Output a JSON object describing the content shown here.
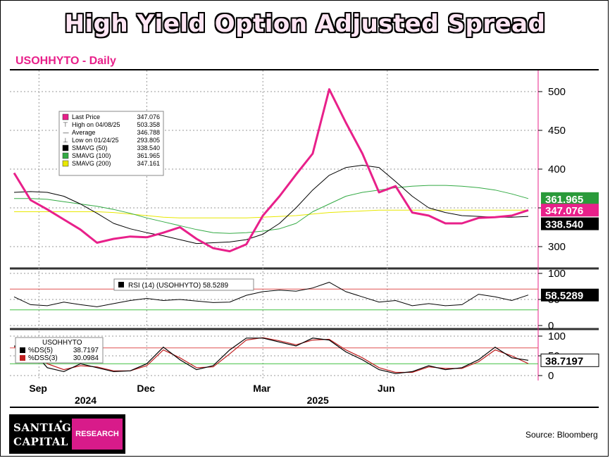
{
  "title": "High Yield Option Adjusted Spread",
  "subtitle": "USOHHYTO - Daily",
  "logo": {
    "line1": "SANTIAGO",
    "line2": "CAPITAL",
    "badge": "RESEARCH"
  },
  "source": "Source: Bloomberg",
  "colors": {
    "price": "#e8208a",
    "sma50": "#000000",
    "sma100": "#33aa44",
    "sma200": "#e8e800",
    "rsi_upper": "#e05050",
    "rsi_lower": "#40c040"
  },
  "x_axis": {
    "ticks": [
      "Sep",
      "Dec",
      "Mar",
      "Jun"
    ],
    "years": [
      "2024",
      "2025"
    ]
  },
  "legend": [
    {
      "icon": "price-swatch",
      "label": "Last Price",
      "value": "347.076"
    },
    {
      "icon": "high-marker",
      "label": "High on 04/08/25",
      "value": "503.358"
    },
    {
      "icon": "average-marker",
      "label": "Average",
      "value": "346.788"
    },
    {
      "icon": "low-marker",
      "label": "Low on 01/24/25",
      "value": "293.805"
    },
    {
      "icon": "sma50-swatch",
      "label": "SMAVG (50)",
      "value": "338.540"
    },
    {
      "icon": "sma100-swatch",
      "label": "SMAVG (100)",
      "value": "361.965"
    },
    {
      "icon": "sma200-swatch",
      "label": "SMAVG (200)",
      "value": "347.161"
    }
  ],
  "rsi_legend": {
    "label": "RSI (14) (USOHHYTO)",
    "value": "58.5289"
  },
  "stoch_legend": {
    "title": "USOHHYTO",
    "lines": [
      {
        "label": "%DS(5)",
        "value": "38.7197"
      },
      {
        "label": "%DSS(3)",
        "value": "30.0984"
      }
    ]
  },
  "chart_data": [
    {
      "type": "line",
      "title": "USOHHYTO - Daily",
      "ylim": [
        280,
        520
      ],
      "yticks": [
        300,
        350,
        400,
        450,
        500
      ],
      "grid": true,
      "legend_position": "top-left",
      "value_labels": [
        "361.965",
        "347.076",
        "338.540"
      ],
      "series": [
        {
          "name": "Last Price",
          "x": [
            "2024-08-01",
            "2024-08-15",
            "2024-08-29",
            "2024-09-12",
            "2024-09-26",
            "2024-10-10",
            "2024-10-24",
            "2024-11-07",
            "2024-11-21",
            "2024-12-05",
            "2024-12-19",
            "2025-01-02",
            "2025-01-16",
            "2025-01-24",
            "2025-02-06",
            "2025-02-20",
            "2025-03-06",
            "2025-03-20",
            "2025-04-03",
            "2025-04-08",
            "2025-04-17",
            "2025-05-01",
            "2025-05-15",
            "2025-05-29",
            "2025-06-12",
            "2025-06-26",
            "2025-07-10",
            "2025-07-24",
            "2025-08-07",
            "2025-08-21",
            "2025-09-04",
            "2025-09-12"
          ],
          "values": [
            395,
            360,
            348,
            335,
            322,
            305,
            310,
            313,
            312,
            318,
            325,
            310,
            298,
            294,
            303,
            340,
            365,
            393,
            420,
            503,
            460,
            420,
            370,
            378,
            344,
            340,
            330,
            330,
            337,
            338,
            340,
            347
          ]
        },
        {
          "name": "SMAVG (50)",
          "values": [
            370,
            371,
            370,
            365,
            355,
            343,
            330,
            323,
            318,
            314,
            309,
            304,
            305,
            306,
            309,
            316,
            330,
            350,
            373,
            392,
            402,
            405,
            402,
            384,
            365,
            350,
            344,
            340,
            339,
            338,
            338,
            339
          ]
        },
        {
          "name": "SMAVG (100)",
          "values": [
            362,
            362,
            361,
            358,
            355,
            352,
            348,
            343,
            337,
            332,
            327,
            322,
            318,
            317,
            318,
            320,
            323,
            330,
            345,
            355,
            365,
            370,
            373,
            376,
            378,
            379,
            379,
            378,
            376,
            373,
            368,
            362
          ]
        },
        {
          "name": "SMAVG (200)",
          "values": [
            345,
            345,
            345,
            345,
            345,
            345,
            344,
            342,
            340,
            338,
            337,
            337,
            337,
            337,
            337,
            338,
            339,
            340,
            342,
            344,
            345,
            346,
            347,
            347,
            347,
            347,
            347,
            347,
            347,
            347,
            347,
            347
          ]
        }
      ]
    },
    {
      "type": "line",
      "title": "RSI (14) (USOHHYTO)",
      "ylim": [
        0,
        100
      ],
      "yticks": [
        0,
        50,
        100
      ],
      "reference_lines": [
        70,
        30
      ],
      "value_label": "58.5289",
      "series": [
        {
          "name": "RSI (14) (USOHHYTO)",
          "values": [
            55,
            40,
            38,
            45,
            40,
            36,
            42,
            48,
            52,
            48,
            50,
            47,
            44,
            45,
            58,
            65,
            68,
            66,
            72,
            83,
            65,
            55,
            45,
            48,
            38,
            42,
            38,
            40,
            60,
            55,
            48,
            58.5
          ]
        }
      ]
    },
    {
      "type": "line",
      "title": "USOHHYTO",
      "ylim": [
        0,
        100
      ],
      "yticks": [
        0,
        50,
        100
      ],
      "reference_lines": [
        70,
        30
      ],
      "value_label": "38.7197",
      "series": [
        {
          "name": "%DS(5)",
          "values": [
            75,
            68,
            20,
            10,
            30,
            20,
            10,
            12,
            30,
            72,
            40,
            15,
            25,
            65,
            95,
            95,
            85,
            75,
            95,
            90,
            60,
            40,
            15,
            5,
            10,
            25,
            15,
            20,
            40,
            72,
            45,
            38.7
          ]
        },
        {
          "name": "%DSS(3)",
          "values": [
            72,
            70,
            30,
            15,
            25,
            22,
            12,
            12,
            25,
            65,
            45,
            20,
            22,
            55,
            90,
            96,
            88,
            78,
            90,
            92,
            65,
            45,
            20,
            8,
            8,
            22,
            18,
            18,
            35,
            65,
            50,
            30.1
          ]
        }
      ]
    }
  ]
}
